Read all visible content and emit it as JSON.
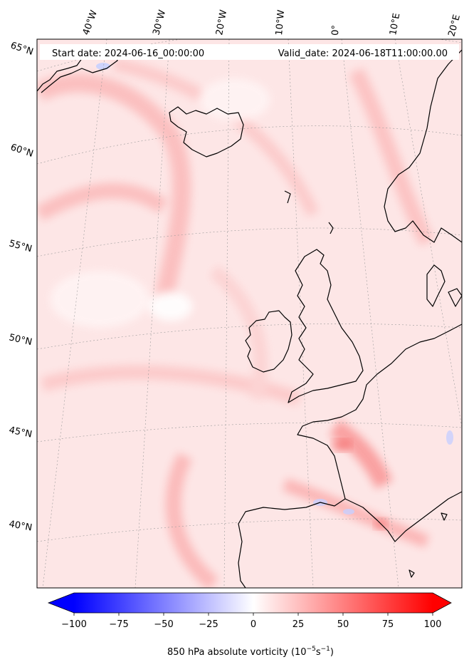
{
  "header": {
    "start_date": "Start date: 2024-06-16_00:00:00",
    "valid_date": "Valid_date: 2024-06-18T11:00:00.00"
  },
  "lon_labels": [
    "40°W",
    "30°W",
    "20°W",
    "10°W",
    "0°",
    "10°E",
    "20°E"
  ],
  "lat_labels": [
    "65°N",
    "60°N",
    "55°N",
    "50°N",
    "45°N",
    "40°N"
  ],
  "colorbar": {
    "ticks": [
      "−100",
      "−75",
      "−50",
      "−25",
      "0",
      "25",
      "50",
      "75",
      "100"
    ],
    "tick_values": [
      -100,
      -75,
      -50,
      -25,
      0,
      25,
      50,
      75,
      100
    ],
    "min": -100,
    "max": 100,
    "label": "850 hPa absolute vorticity (10",
    "label_exp1": "−5",
    "label_mid": "s",
    "label_exp2": "−1",
    "label_end": ")",
    "colormap": "bwr",
    "low_color": "#0000ff",
    "mid_color": "#ffffff",
    "high_color": "#ff0000"
  },
  "map": {
    "projection": "lambert-conformal",
    "field": "850 hPa absolute vorticity",
    "background_tint": "#fde6e6",
    "coastline_color": "#000000"
  }
}
